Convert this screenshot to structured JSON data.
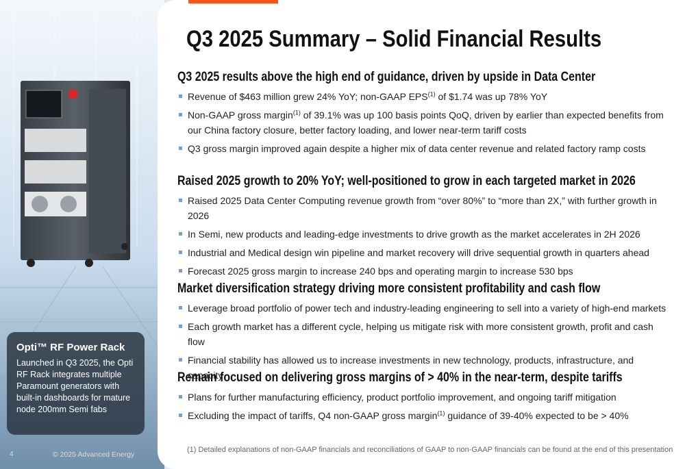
{
  "title": "Q3 2025 Summary – Solid Financial Results",
  "sections": [
    {
      "heading": "Q3 2025 results above the high end of guidance, driven by upside in Data Center",
      "bullets": [
        {
          "before": "Revenue of $463 million grew 24% YoY; non-GAAP EPS",
          "note": "(1)",
          "after": " of $1.74 was up 78% YoY"
        },
        {
          "before": "Non-GAAP gross margin",
          "note": "(1)",
          "after": " of 39.1% was up 100 basis points QoQ, driven by earlier than expected benefits from our China factory closure, better factory loading, and lower near-term tariff costs"
        },
        "Q3 gross margin improved again despite a higher mix of data center revenue and related factory ramp costs"
      ]
    },
    {
      "heading": "Raised 2025 growth to 20% YoY; well-positioned to grow in each targeted market in 2026",
      "bullets": [
        "Raised 2025 Data Center Computing revenue growth from “over 80%” to “more than 2X,” with further growth in 2026",
        "In Semi, new products and leading-edge investments to drive growth as the market accelerates in 2H 2026",
        "Industrial and Medical design win pipeline and market recovery will drive sequential growth in quarters ahead",
        "Forecast 2025 gross margin to increase 240 bps and operating margin to increase 530 bps"
      ]
    },
    {
      "heading": "Market diversification strategy driving more consistent profitability and cash flow",
      "bullets": [
        "Leverage broad portfolio of power tech and industry-leading engineering to sell into a variety of high-end markets",
        "Each growth market has a different cycle, helping us mitigate risk with more consistent growth, profit and cash flow",
        "Financial stability has allowed us to increase investments in new technology, products, infrastructure, and capacity"
      ]
    },
    {
      "heading": "Remain focused on delivering gross margins of > 40% in the near-term, despite tariffs",
      "bullets": [
        "Plans for further manufacturing efficiency, product portfolio improvement, and ongoing tariff mitigation",
        {
          "before": "Excluding the impact of tariffs, Q4 non-GAAP gross margin",
          "note": "(1)",
          "after": " guidance of 39-40% expected to be > 40%"
        }
      ]
    }
  ],
  "sidebar": {
    "caption_title": "Opti™ RF Power Rack",
    "caption_text": "Launched in Q3 2025, the Opti RF Rack integrates multiple Paramount generators with built-in dashboards for mature node 200mm Semi fabs"
  },
  "footer": {
    "page_number": "4",
    "copyright": "© 2025 Advanced Energy",
    "footnote": "(1)  Detailed explanations of non-GAAP financials and reconciliations of GAAP to non-GAAP financials can be found at the end of this presentation"
  }
}
